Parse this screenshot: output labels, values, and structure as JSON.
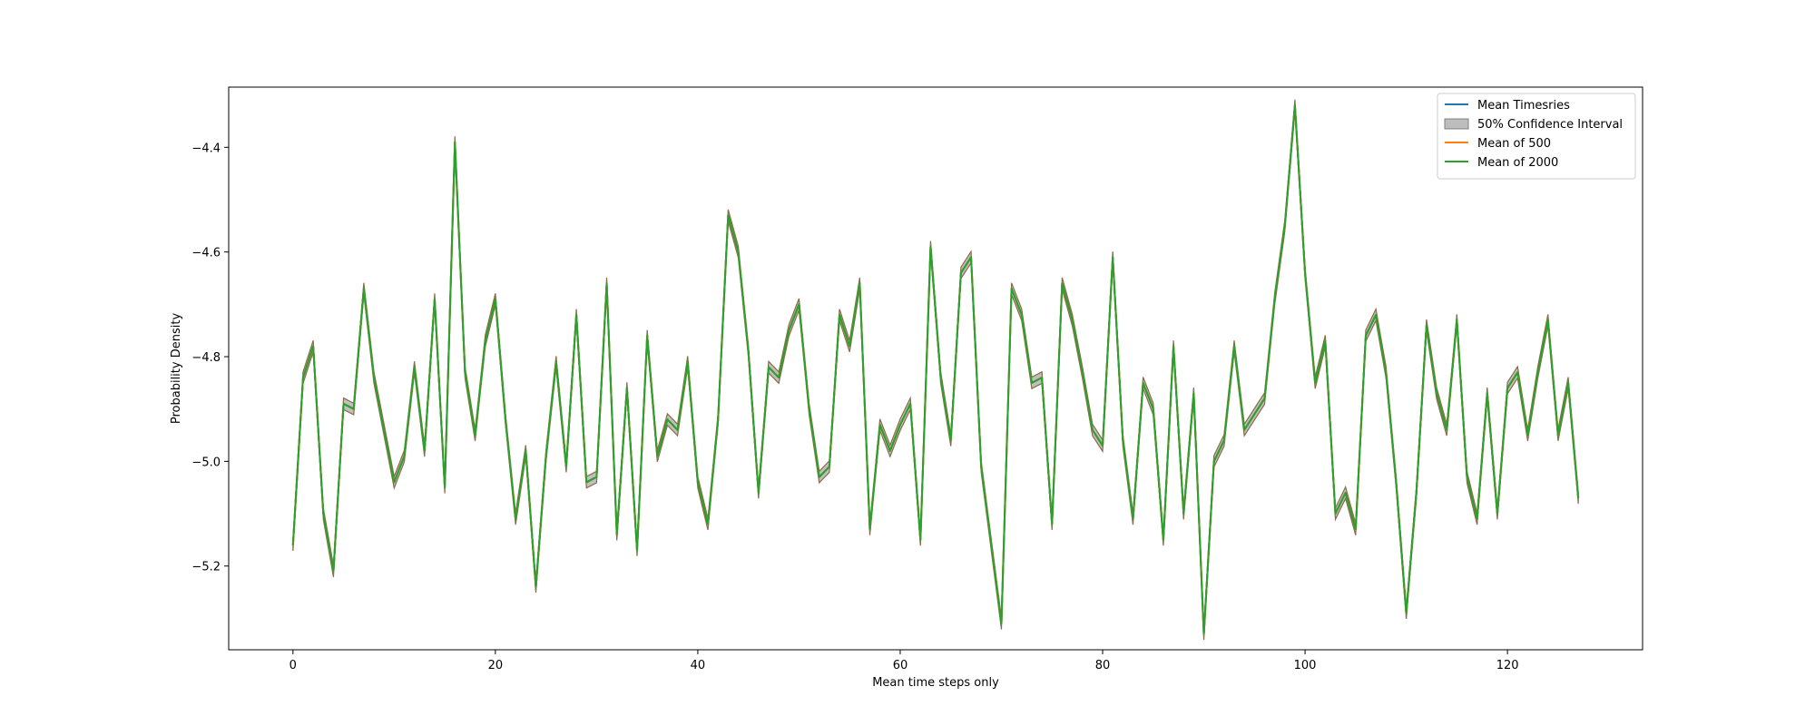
{
  "chart_data": {
    "type": "line",
    "title": "",
    "xlabel": "Mean time steps only",
    "ylabel": "Probability Density",
    "xlim": [
      -6.35,
      133.35
    ],
    "ylim": [
      -5.36,
      -4.285
    ],
    "xticks": [
      0,
      20,
      40,
      60,
      80,
      100,
      120
    ],
    "yticks": [
      -5.2,
      -5.0,
      -4.8,
      -4.6,
      -4.4
    ],
    "ytick_labels": [
      "−5.2",
      "−5.0",
      "−4.8",
      "−4.6",
      "−4.4"
    ],
    "grid": false,
    "legend_position": "top-right",
    "band_halfwidth": 0.011,
    "x": [
      0,
      1,
      2,
      3,
      4,
      5,
      6,
      7,
      8,
      9,
      10,
      11,
      12,
      13,
      14,
      15,
      16,
      17,
      18,
      19,
      20,
      21,
      22,
      23,
      24,
      25,
      26,
      27,
      28,
      29,
      30,
      31,
      32,
      33,
      34,
      35,
      36,
      37,
      38,
      39,
      40,
      41,
      42,
      43,
      44,
      45,
      46,
      47,
      48,
      49,
      50,
      51,
      52,
      53,
      54,
      55,
      56,
      57,
      58,
      59,
      60,
      61,
      62,
      63,
      64,
      65,
      66,
      67,
      68,
      69,
      70,
      71,
      72,
      73,
      74,
      75,
      76,
      77,
      78,
      79,
      80,
      81,
      82,
      83,
      84,
      85,
      86,
      87,
      88,
      89,
      90,
      91,
      92,
      93,
      94,
      95,
      96,
      97,
      98,
      99,
      100,
      101,
      102,
      103,
      104,
      105,
      106,
      107,
      108,
      109,
      110,
      111,
      112,
      113,
      114,
      115,
      116,
      117,
      118,
      119,
      120,
      121,
      122,
      123,
      124,
      125,
      126,
      127
    ],
    "series": [
      {
        "name": "Mean Timesries",
        "color": "#1f77b4",
        "values": [
          -5.16,
          -4.84,
          -4.78,
          -5.1,
          -5.21,
          -4.89,
          -4.9,
          -4.67,
          -4.84,
          -4.94,
          -5.04,
          -4.99,
          -4.82,
          -4.98,
          -4.69,
          -5.05,
          -4.39,
          -4.83,
          -4.95,
          -4.77,
          -4.69,
          -4.92,
          -5.11,
          -4.98,
          -5.24,
          -4.99,
          -4.81,
          -5.01,
          -4.72,
          -5.04,
          -5.03,
          -4.66,
          -5.14,
          -4.86,
          -5.17,
          -4.76,
          -4.99,
          -4.92,
          -4.94,
          -4.81,
          -5.04,
          -5.12,
          -4.92,
          -4.53,
          -4.6,
          -4.79,
          -5.06,
          -4.82,
          -4.84,
          -4.75,
          -4.7,
          -4.9,
          -5.03,
          -5.01,
          -4.72,
          -4.78,
          -4.66,
          -5.13,
          -4.93,
          -4.98,
          -4.93,
          -4.89,
          -5.15,
          -4.59,
          -4.84,
          -4.96,
          -4.64,
          -4.61,
          -5.01,
          -5.16,
          -5.31,
          -4.67,
          -4.72,
          -4.85,
          -4.84,
          -5.12,
          -4.66,
          -4.73,
          -4.83,
          -4.94,
          -4.97,
          -4.61,
          -4.96,
          -5.11,
          -4.85,
          -4.9,
          -5.15,
          -4.78,
          -5.1,
          -4.87,
          -5.33,
          -5.0,
          -4.96,
          -4.78,
          -4.94,
          -4.91,
          -4.88,
          -4.69,
          -4.55,
          -4.32,
          -4.64,
          -4.85,
          -4.77,
          -5.1,
          -5.06,
          -5.13,
          -4.76,
          -4.72,
          -4.83,
          -5.04,
          -5.29,
          -5.06,
          -4.74,
          -4.87,
          -4.94,
          -4.73,
          -5.03,
          -5.11,
          -4.87,
          -5.1,
          -4.86,
          -4.83,
          -4.95,
          -4.83,
          -4.73,
          -4.95,
          -4.85,
          -5.07
        ]
      },
      {
        "name": "Mean of 500",
        "color": "#ff7f0e",
        "values": [
          -5.16,
          -4.84,
          -4.78,
          -5.1,
          -5.21,
          -4.89,
          -4.9,
          -4.67,
          -4.84,
          -4.94,
          -5.04,
          -4.99,
          -4.82,
          -4.98,
          -4.69,
          -5.05,
          -4.39,
          -4.83,
          -4.95,
          -4.77,
          -4.69,
          -4.92,
          -5.11,
          -4.98,
          -5.24,
          -4.99,
          -4.81,
          -5.01,
          -4.72,
          -5.04,
          -5.03,
          -4.66,
          -5.14,
          -4.86,
          -5.17,
          -4.76,
          -4.99,
          -4.92,
          -4.94,
          -4.81,
          -5.04,
          -5.12,
          -4.92,
          -4.53,
          -4.6,
          -4.79,
          -5.06,
          -4.82,
          -4.84,
          -4.75,
          -4.7,
          -4.9,
          -5.03,
          -5.01,
          -4.72,
          -4.78,
          -4.66,
          -5.13,
          -4.93,
          -4.98,
          -4.93,
          -4.89,
          -5.15,
          -4.59,
          -4.84,
          -4.96,
          -4.64,
          -4.61,
          -5.01,
          -5.16,
          -5.31,
          -4.67,
          -4.72,
          -4.85,
          -4.84,
          -5.12,
          -4.66,
          -4.73,
          -4.83,
          -4.94,
          -4.97,
          -4.61,
          -4.96,
          -5.11,
          -4.85,
          -4.9,
          -5.15,
          -4.78,
          -5.1,
          -4.87,
          -5.33,
          -5.0,
          -4.96,
          -4.78,
          -4.94,
          -4.91,
          -4.88,
          -4.69,
          -4.55,
          -4.32,
          -4.64,
          -4.85,
          -4.77,
          -5.1,
          -5.06,
          -5.13,
          -4.76,
          -4.72,
          -4.83,
          -5.04,
          -5.29,
          -5.06,
          -4.74,
          -4.87,
          -4.94,
          -4.73,
          -5.03,
          -5.11,
          -4.87,
          -5.1,
          -4.86,
          -4.83,
          -4.95,
          -4.83,
          -4.73,
          -4.95,
          -4.85,
          -5.07
        ]
      },
      {
        "name": "Mean of 2000",
        "color": "#2ca02c",
        "values": [
          -5.16,
          -4.84,
          -4.78,
          -5.1,
          -5.21,
          -4.89,
          -4.9,
          -4.67,
          -4.84,
          -4.94,
          -5.04,
          -4.99,
          -4.82,
          -4.98,
          -4.69,
          -5.05,
          -4.39,
          -4.83,
          -4.95,
          -4.77,
          -4.69,
          -4.92,
          -5.11,
          -4.98,
          -5.24,
          -4.99,
          -4.81,
          -5.01,
          -4.72,
          -5.04,
          -5.03,
          -4.66,
          -5.14,
          -4.86,
          -5.17,
          -4.76,
          -4.99,
          -4.92,
          -4.94,
          -4.81,
          -5.04,
          -5.12,
          -4.92,
          -4.53,
          -4.6,
          -4.79,
          -5.06,
          -4.82,
          -4.84,
          -4.75,
          -4.7,
          -4.9,
          -5.03,
          -5.01,
          -4.72,
          -4.78,
          -4.66,
          -5.13,
          -4.93,
          -4.98,
          -4.93,
          -4.89,
          -5.15,
          -4.59,
          -4.84,
          -4.96,
          -4.64,
          -4.61,
          -5.01,
          -5.16,
          -5.31,
          -4.67,
          -4.72,
          -4.85,
          -4.84,
          -5.12,
          -4.66,
          -4.73,
          -4.83,
          -4.94,
          -4.97,
          -4.61,
          -4.96,
          -5.11,
          -4.85,
          -4.9,
          -5.15,
          -4.78,
          -5.1,
          -4.87,
          -5.33,
          -5.0,
          -4.96,
          -4.78,
          -4.94,
          -4.91,
          -4.88,
          -4.69,
          -4.55,
          -4.32,
          -4.64,
          -4.85,
          -4.77,
          -5.1,
          -5.06,
          -5.13,
          -4.76,
          -4.72,
          -4.83,
          -5.04,
          -5.29,
          -5.06,
          -4.74,
          -4.87,
          -4.94,
          -4.73,
          -5.03,
          -5.11,
          -4.87,
          -5.1,
          -4.86,
          -4.83,
          -4.95,
          -4.83,
          -4.73,
          -4.95,
          -4.85,
          -5.07
        ]
      }
    ],
    "band": {
      "name": "50% Confidence Interval",
      "color": "#808080"
    },
    "legend": [
      {
        "label": "Mean Timesries",
        "kind": "line",
        "color": "#1f77b4"
      },
      {
        "label": "50% Confidence Interval",
        "kind": "patch",
        "color": "#bdbdbd"
      },
      {
        "label": "Mean of 500",
        "kind": "line",
        "color": "#ff7f0e"
      },
      {
        "label": "Mean of 2000",
        "kind": "line",
        "color": "#2ca02c"
      }
    ]
  }
}
